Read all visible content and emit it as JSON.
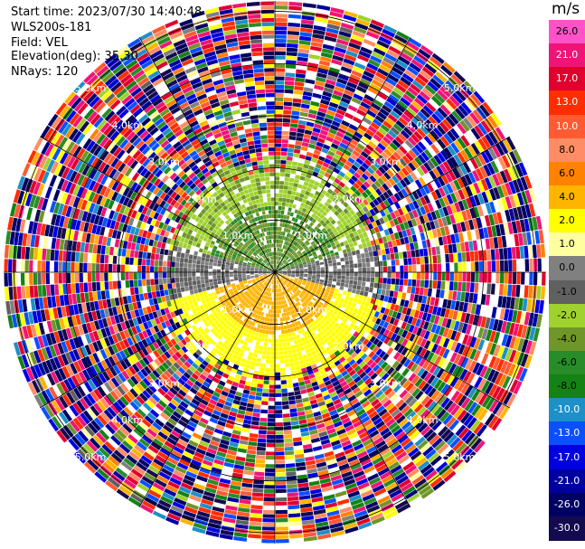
{
  "info": {
    "start_time": "Start time: 2023/07/30 14:40:48",
    "instrument": "WLS200s-181",
    "field": "Field: VEL",
    "elevation": "Elevation(deg): 35.30",
    "nrays": "NRays: 120"
  },
  "colorbar": {
    "unit": "m/s",
    "ticks": [
      "26.0",
      "21.0",
      "17.0",
      "13.0",
      "10.0",
      "8.0",
      "6.0",
      "4.0",
      "2.0",
      "1.0",
      "0.0",
      "-1.0",
      "-2.0",
      "-4.0",
      "-6.0",
      "-8.0",
      "-10.0",
      "-13.0",
      "-17.0",
      "-21.0",
      "-26.0",
      "-30.0"
    ],
    "colors": [
      "#ff52c8",
      "#f01478",
      "#e1002d",
      "#ff2d00",
      "#ff5a32",
      "#ff8c64",
      "#ff8200",
      "#ffb400",
      "#ffff00",
      "#ffffa0",
      "#808080",
      "#606060",
      "#a0d22d",
      "#6e9628",
      "#288c28",
      "#148214",
      "#1e90c8",
      "#0a50ff",
      "#0000e1",
      "#0000a0",
      "#000064",
      "#140a50"
    ]
  },
  "chart_data": {
    "type": "ppi-radar",
    "field": "VEL",
    "units": "m/s",
    "nrays": 120,
    "range_rings_km": [
      1.0,
      2.0,
      3.0,
      4.0,
      5.0
    ],
    "ring_labels": [
      "1.0km",
      "2.0km",
      "3.0km",
      "4.0km",
      "5.0km"
    ],
    "max_range_km": 5.2,
    "spoke_angles_deg": [
      0,
      30,
      60,
      90,
      120,
      150,
      180,
      210,
      240,
      270,
      300,
      330
    ],
    "sectors": [
      {
        "region": "north-inner",
        "range_km": [
          0.0,
          1.3
        ],
        "dominant_velocity": -4.0
      },
      {
        "region": "north-mid",
        "range_km": [
          1.3,
          2.2
        ],
        "dominant_velocity": -2.0
      },
      {
        "region": "south-inner",
        "range_km": [
          0.0,
          1.3
        ],
        "dominant_velocity": 4.0
      },
      {
        "region": "south-mid",
        "range_km": [
          1.3,
          2.2
        ],
        "dominant_velocity": 2.0
      },
      {
        "region": "east-west-inner",
        "range_km": [
          0.0,
          2.0
        ],
        "dominant_velocity": 0.0
      },
      {
        "region": "outer-noise",
        "range_km": [
          2.2,
          5.2
        ],
        "dominant_velocity": "mixed"
      }
    ]
  }
}
